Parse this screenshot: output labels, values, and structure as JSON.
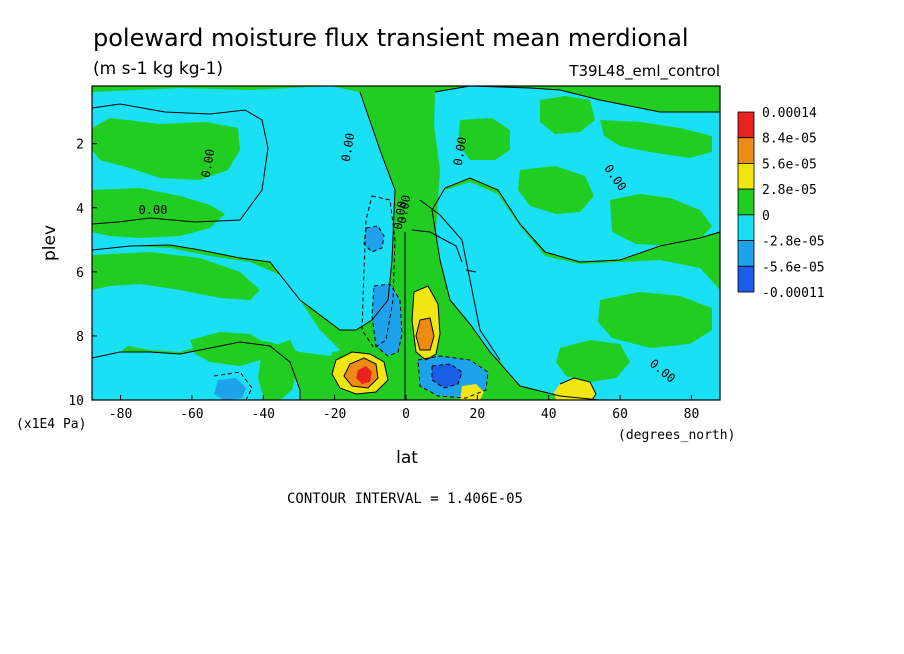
{
  "chart_data": {
    "type": "heatmap",
    "title": "poleward moisture flux transient mean merdional",
    "units": "(m s-1 kg kg-1)",
    "experiment": "T39L48_eml_control",
    "xlabel": "lat",
    "xunits": "(degrees_north)",
    "ylabel": "plev",
    "yunits": "(x1E4 Pa)",
    "xlim": [
      -88,
      88
    ],
    "ylim": [
      10,
      0.2
    ],
    "xticks": [
      "-80",
      "-60",
      "-40",
      "-20",
      "0",
      "20",
      "40",
      "60",
      "80"
    ],
    "xtick_values": [
      -80,
      -60,
      -40,
      -20,
      0,
      20,
      40,
      60,
      80
    ],
    "yticks": [
      "2",
      "4",
      "6",
      "8",
      "10"
    ],
    "ytick_values": [
      2,
      4,
      6,
      8,
      10
    ],
    "contour_interval": "CONTOUR INTERVAL = 1.406E-05",
    "contour_labels": [
      "0.00",
      "0.00",
      "0.00",
      "0.00",
      "0.00",
      "0.00",
      "0.00",
      "0.00"
    ],
    "legend": {
      "placement": "right",
      "labels": [
        "0.00014",
        "8.4e-05",
        "5.6e-05",
        "2.8e-05",
        "0",
        "-2.8e-05",
        "-5.6e-05",
        "-0.00011"
      ],
      "colors": [
        "#e8221e",
        "#ec8c12",
        "#f2e612",
        "#22cd22",
        "#19e0f5",
        "#1ea2ec",
        "#1a5ee8"
      ]
    },
    "background_color": "#22cd22"
  }
}
